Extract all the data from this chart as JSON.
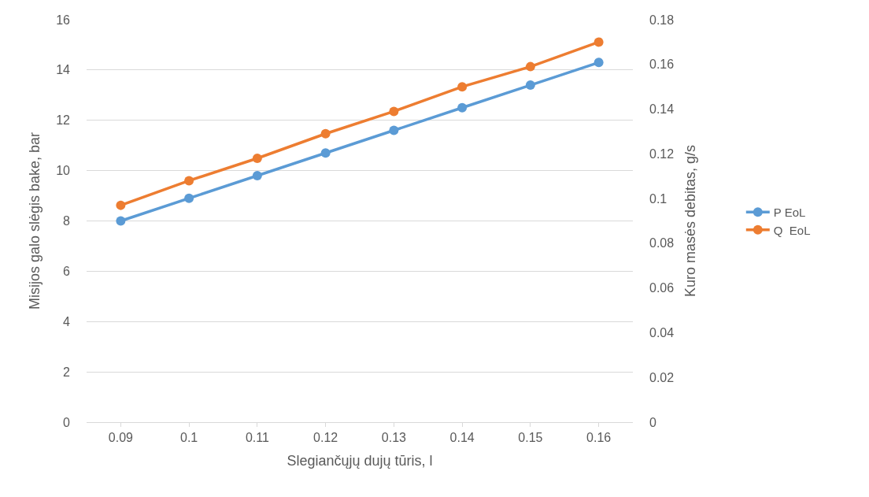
{
  "chart_data": {
    "type": "line",
    "xlabel": "Slegiančųjų dujų tūris, l",
    "ylabel": "Misijos galo slėgis bake, bar",
    "y2label": "Kuro masės debitas, g/s",
    "categories": [
      "0.09",
      "0.1",
      "0.11",
      "0.12",
      "0.13",
      "0.14",
      "0.15",
      "0.16"
    ],
    "series": [
      {
        "name": "P EoL",
        "color": "#5b9bd5",
        "values": [
          8.0,
          8.9,
          9.8,
          10.7,
          11.6,
          12.5,
          13.4,
          14.3
        ]
      },
      {
        "name": "Q  EoL",
        "color": "#ed7d31",
        "axis": "y2",
        "values": [
          0.097,
          0.108,
          0.118,
          0.129,
          0.139,
          0.15,
          0.159,
          0.17
        ]
      }
    ],
    "ylim": [
      0,
      16
    ],
    "yticks": [
      0,
      2,
      4,
      6,
      8,
      10,
      12,
      14,
      16
    ],
    "y2lim": [
      0,
      0.18
    ],
    "y2ticks": [
      0,
      0.02,
      0.04,
      0.06,
      0.08,
      0.1,
      0.12,
      0.14,
      0.16,
      0.18
    ],
    "grid": "y",
    "legend": "right",
    "marker": "circle",
    "line_style": "solid"
  }
}
